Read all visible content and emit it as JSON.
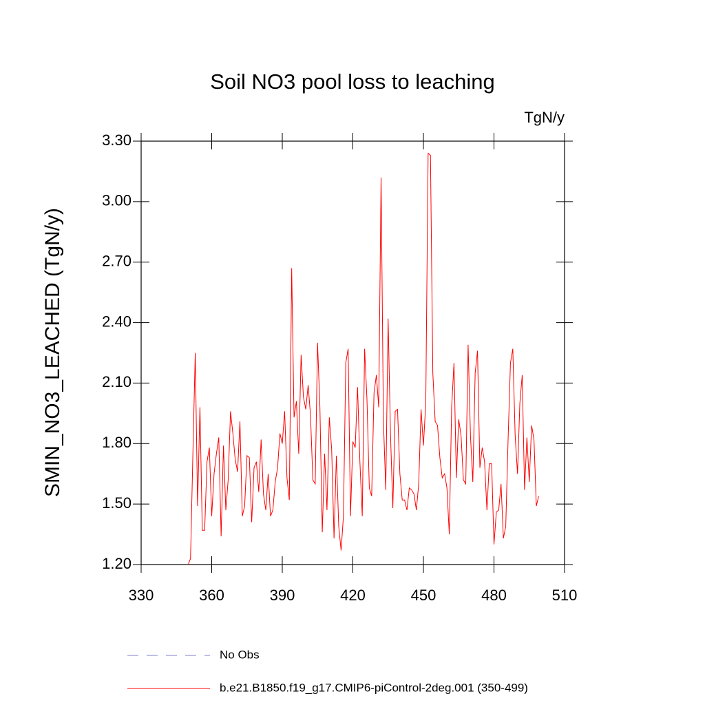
{
  "chart_data": {
    "type": "line",
    "title": "Soil NO3 pool loss to leaching",
    "units": "TgN/y",
    "y_label": "SMIN_NO3_LEACHED  (TgN/y)",
    "x": [
      350,
      351,
      352,
      353,
      354,
      355,
      356,
      357,
      358,
      359,
      360,
      361,
      362,
      363,
      364,
      365,
      366,
      367,
      368,
      369,
      370,
      371,
      372,
      373,
      374,
      375,
      376,
      377,
      378,
      379,
      380,
      381,
      382,
      383,
      384,
      385,
      386,
      387,
      388,
      389,
      390,
      391,
      392,
      393,
      394,
      395,
      396,
      397,
      398,
      399,
      400,
      401,
      402,
      403,
      404,
      405,
      406,
      407,
      408,
      409,
      410,
      411,
      412,
      413,
      414,
      415,
      416,
      417,
      418,
      419,
      420,
      421,
      422,
      423,
      424,
      425,
      426,
      427,
      428,
      429,
      430,
      431,
      432,
      433,
      434,
      435,
      436,
      437,
      438,
      439,
      440,
      441,
      442,
      443,
      444,
      445,
      446,
      447,
      448,
      449,
      450,
      451,
      452,
      453,
      454,
      455,
      456,
      457,
      458,
      459,
      460,
      461,
      462,
      463,
      464,
      465,
      466,
      467,
      468,
      469,
      470,
      471,
      472,
      473,
      474,
      475,
      476,
      477,
      478,
      479,
      480,
      481,
      482,
      483,
      484,
      485,
      486,
      487,
      488,
      489,
      490,
      491,
      492,
      493,
      494,
      495,
      496,
      497,
      498,
      499
    ],
    "series": [
      {
        "name": "b.e21.B1850.f19_g17.CMIP6-piControl-2deg.001 (350-499)",
        "color": "#ff0000",
        "values": [
          1.2,
          1.23,
          1.75,
          2.25,
          1.49,
          1.98,
          1.37,
          1.37,
          1.71,
          1.78,
          1.44,
          1.65,
          1.75,
          1.83,
          1.34,
          1.79,
          1.47,
          1.62,
          1.96,
          1.85,
          1.72,
          1.66,
          1.91,
          1.44,
          1.49,
          1.74,
          1.73,
          1.41,
          1.68,
          1.71,
          1.56,
          1.82,
          1.55,
          1.47,
          1.65,
          1.44,
          1.47,
          1.61,
          1.68,
          1.85,
          1.8,
          1.96,
          1.63,
          1.52,
          2.67,
          1.93,
          2.01,
          1.75,
          2.24,
          2.03,
          1.97,
          2.09,
          1.94,
          1.62,
          1.6,
          2.3,
          1.98,
          1.36,
          1.75,
          1.47,
          1.93,
          1.77,
          1.33,
          1.74,
          1.39,
          1.27,
          1.44,
          2.2,
          2.27,
          1.44,
          1.81,
          1.78,
          2.08,
          1.71,
          1.44,
          2.27,
          2.02,
          1.58,
          1.54,
          2.05,
          2.14,
          1.98,
          3.12,
          1.91,
          1.57,
          2.42,
          1.85,
          1.48,
          1.96,
          1.97,
          1.65,
          1.52,
          1.52,
          1.47,
          1.58,
          1.57,
          1.55,
          1.47,
          1.6,
          1.97,
          1.79,
          2.0,
          3.24,
          3.23,
          2.15,
          1.91,
          1.89,
          1.73,
          1.63,
          1.65,
          1.58,
          1.35,
          1.98,
          2.2,
          1.63,
          1.92,
          1.84,
          1.62,
          1.6,
          2.29,
          1.84,
          1.61,
          2.15,
          2.26,
          1.68,
          1.78,
          1.71,
          1.47,
          1.7,
          1.7,
          1.3,
          1.46,
          1.47,
          1.6,
          1.33,
          1.39,
          1.82,
          2.2,
          2.27,
          1.84,
          1.65,
          2.0,
          2.14,
          1.57,
          1.83,
          1.61,
          1.89,
          1.82,
          1.49,
          1.54
        ]
      }
    ],
    "legend": [
      {
        "name": "No Obs",
        "color": "#7f7fcf",
        "dash": "dashed"
      }
    ],
    "xlim": [
      330,
      510
    ],
    "xticks": [
      330,
      360,
      390,
      420,
      450,
      480,
      510
    ],
    "ylim": [
      1.2,
      3.3
    ],
    "yticks": [
      {
        "value": 1.2,
        "label": "1.20"
      },
      {
        "value": 1.5,
        "label": "1.50"
      },
      {
        "value": 1.8,
        "label": "1.80"
      },
      {
        "value": 2.1,
        "label": "2.10"
      },
      {
        "value": 2.4,
        "label": "2.40"
      },
      {
        "value": 2.7,
        "label": "2.70"
      },
      {
        "value": 3.0,
        "label": "3.00"
      },
      {
        "value": 3.3,
        "label": "3.30"
      }
    ]
  }
}
